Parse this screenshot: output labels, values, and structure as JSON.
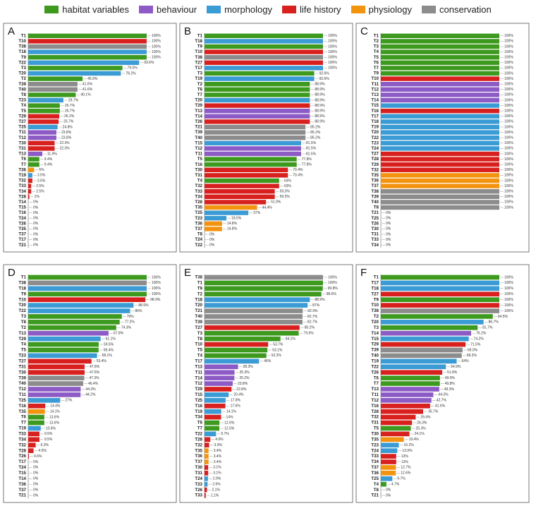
{
  "legend": [
    {
      "name": "habitat variables",
      "color": "#3d9a1f"
    },
    {
      "name": "behaviour",
      "color": "#8d5bc6"
    },
    {
      "name": "morphology",
      "color": "#3a9bd5"
    },
    {
      "name": "life history",
      "color": "#d8201e"
    },
    {
      "name": "physiology",
      "color": "#f39410"
    },
    {
      "name": "conservation",
      "color": "#8c8c8c"
    }
  ],
  "chart_data": [
    {
      "type": "bar",
      "panel_label": "A",
      "xlim": [
        0,
        100
      ],
      "categories": [
        "T1",
        "T10",
        "T38",
        "T18",
        "T9",
        "T22",
        "T3",
        "T20",
        "T2",
        "T39",
        "T40",
        "T8",
        "T23",
        "T4",
        "T5",
        "T29",
        "T27",
        "T25",
        "T11",
        "T12",
        "T30",
        "T31",
        "T13",
        "T6",
        "T7",
        "T36",
        "T19",
        "T32",
        "T33",
        "T34",
        "T28",
        "T14",
        "T15",
        "T16",
        "T24",
        "T26",
        "T35",
        "T37",
        "T17",
        "T21"
      ],
      "values": [
        100,
        100,
        100,
        100,
        100,
        93.6,
        79.5,
        78.2,
        45.9,
        41.6,
        41.6,
        40.1,
        29.7,
        26.7,
        26.7,
        26.2,
        25.7,
        24.8,
        23.8,
        23.8,
        22.3,
        22.3,
        11.9,
        9.4,
        9.4,
        5,
        3.5,
        3.5,
        2.5,
        2.5,
        1,
        0,
        0,
        0,
        0,
        0,
        0,
        0,
        0,
        0
      ],
      "value_labels": [
        "100%",
        "100%",
        "100%",
        "100%",
        "100%",
        "93.6%",
        "79.5%",
        "78.2%",
        "45.9%",
        "41.6%",
        "41.6%",
        "40.1%",
        "29.7%",
        "26.7%",
        "26.7%",
        "26.2%",
        "25.7%",
        "24.8%",
        "23.8%",
        "23.8%",
        "22.3%",
        "22.3%",
        "11.9%",
        "9.4%",
        "9.4%",
        "5%",
        "3.5%",
        "3.5%",
        "2.5%",
        "2.5%",
        "1%",
        "0%",
        "0%",
        "0%",
        "0%",
        "0%",
        "0%",
        "0%",
        "0%",
        "0%"
      ],
      "colors": [
        "#3d9a1f",
        "#d8201e",
        "#8c8c8c",
        "#3a9bd5",
        "#3d9a1f",
        "#3a9bd5",
        "#3d9a1f",
        "#3a9bd5",
        "#3d9a1f",
        "#8c8c8c",
        "#8c8c8c",
        "#3d9a1f",
        "#3a9bd5",
        "#3d9a1f",
        "#3d9a1f",
        "#d8201e",
        "#d8201e",
        "#3a9bd5",
        "#8d5bc6",
        "#8d5bc6",
        "#d8201e",
        "#d8201e",
        "#8d5bc6",
        "#3d9a1f",
        "#3d9a1f",
        "#f39410",
        "#3a9bd5",
        "#d8201e",
        "#d8201e",
        "#d8201e",
        "#d8201e",
        "#8d5bc6",
        "#3a9bd5",
        "#d8201e",
        "#3a9bd5",
        "#d8201e",
        "#f39410",
        "#f39410",
        "#3a9bd5",
        "#8c8c8c"
      ]
    },
    {
      "type": "bar",
      "panel_label": "B",
      "xlim": [
        0,
        100
      ],
      "categories": [
        "T1",
        "T18",
        "T9",
        "T10",
        "T38",
        "T27",
        "T17",
        "T3",
        "T19",
        "T2",
        "T6",
        "T7",
        "T20",
        "T29",
        "T13",
        "T14",
        "T26",
        "T21",
        "T39",
        "T40",
        "T15",
        "T12",
        "T11",
        "T5",
        "T16",
        "T30",
        "T31",
        "T4",
        "T32",
        "T33",
        "T34",
        "T28",
        "T35",
        "T25",
        "T23",
        "T36",
        "T37",
        "T8",
        "T24",
        "T22"
      ],
      "values": [
        100,
        100,
        100,
        100,
        100,
        100,
        100,
        92.6,
        92.6,
        88.9,
        88.9,
        88.9,
        88.9,
        88.9,
        88.9,
        88.9,
        88.9,
        85.2,
        85.2,
        85.2,
        81.5,
        81.5,
        81.5,
        77.8,
        77.8,
        70.4,
        70.4,
        63,
        63,
        59.3,
        59.3,
        51.9,
        44.4,
        37,
        18.5,
        14.8,
        14.8,
        0,
        0,
        0
      ],
      "value_labels": [
        "100%",
        "100%",
        "100%",
        "100%",
        "100%",
        "100%",
        "100%",
        "92.6%",
        "92.6%",
        "88.9%",
        "88.9%",
        "88.9%",
        "88.9%",
        "88.9%",
        "88.9%",
        "88.9%",
        "88.9%",
        "85.2%",
        "85.2%",
        "85.2%",
        "81.5%",
        "81.5%",
        "81.5%",
        "77.8%",
        "77.8%",
        "70.4%",
        "70.4%",
        "63%",
        "63%",
        "59.3%",
        "59.3%",
        "51.9%",
        "44.4%",
        "37%",
        "18.5%",
        "14.8%",
        "14.8%",
        "0%",
        "0%",
        "0%"
      ],
      "colors": [
        "#3d9a1f",
        "#3a9bd5",
        "#3d9a1f",
        "#d8201e",
        "#8c8c8c",
        "#d8201e",
        "#3a9bd5",
        "#3d9a1f",
        "#3a9bd5",
        "#3d9a1f",
        "#3d9a1f",
        "#3d9a1f",
        "#3a9bd5",
        "#d8201e",
        "#8d5bc6",
        "#8d5bc6",
        "#d8201e",
        "#8c8c8c",
        "#8c8c8c",
        "#8c8c8c",
        "#3a9bd5",
        "#8d5bc6",
        "#8d5bc6",
        "#3d9a1f",
        "#3d9a1f",
        "#d8201e",
        "#d8201e",
        "#3d9a1f",
        "#d8201e",
        "#d8201e",
        "#d8201e",
        "#d8201e",
        "#f39410",
        "#3a9bd5",
        "#3a9bd5",
        "#f39410",
        "#f39410",
        "#3d9a1f",
        "#3a9bd5",
        "#3a9bd5"
      ]
    },
    {
      "type": "bar",
      "panel_label": "C",
      "xlim": [
        0,
        100
      ],
      "categories": [
        "T1",
        "T2",
        "T3",
        "T4",
        "T5",
        "T6",
        "T7",
        "T9",
        "T10",
        "T11",
        "T12",
        "T13",
        "T14",
        "T15",
        "T16",
        "T17",
        "T18",
        "T19",
        "T20",
        "T22",
        "T23",
        "T24",
        "T27",
        "T28",
        "T29",
        "T32",
        "T35",
        "T36",
        "T37",
        "T38",
        "T39",
        "T40",
        "T8",
        "T21",
        "T25",
        "T26",
        "T30",
        "T31",
        "T33",
        "T34"
      ],
      "values": [
        100,
        100,
        100,
        100,
        100,
        100,
        100,
        100,
        100,
        100,
        100,
        100,
        100,
        100,
        100,
        100,
        100,
        100,
        100,
        100,
        100,
        100,
        100,
        100,
        100,
        100,
        100,
        100,
        100,
        100,
        100,
        100,
        100,
        0,
        0,
        0,
        0,
        0,
        0,
        0
      ],
      "value_labels": [
        "100%",
        "100%",
        "100%",
        "100%",
        "100%",
        "100%",
        "100%",
        "100%",
        "100%",
        "100%",
        "100%",
        "100%",
        "100%",
        "100%",
        "100%",
        "100%",
        "100%",
        "100%",
        "100%",
        "100%",
        "100%",
        "100%",
        "100%",
        "100%",
        "100%",
        "100%",
        "100%",
        "100%",
        "100%",
        "100%",
        "100%",
        "100%",
        "100%",
        "0%",
        "0%",
        "0%",
        "0%",
        "0%",
        "0%",
        "0%"
      ],
      "colors": [
        "#3d9a1f",
        "#3d9a1f",
        "#3d9a1f",
        "#3d9a1f",
        "#3d9a1f",
        "#3d9a1f",
        "#3d9a1f",
        "#3d9a1f",
        "#d8201e",
        "#8d5bc6",
        "#8d5bc6",
        "#8d5bc6",
        "#8d5bc6",
        "#3a9bd5",
        "#d8201e",
        "#3a9bd5",
        "#3a9bd5",
        "#3a9bd5",
        "#3a9bd5",
        "#3a9bd5",
        "#3a9bd5",
        "#3a9bd5",
        "#d8201e",
        "#d8201e",
        "#d8201e",
        "#d8201e",
        "#f39410",
        "#f39410",
        "#f39410",
        "#8c8c8c",
        "#8c8c8c",
        "#8c8c8c",
        "#8c8c8c",
        "#8c8c8c",
        "#3a9bd5",
        "#d8201e",
        "#d8201e",
        "#d8201e",
        "#d8201e",
        "#d8201e"
      ]
    },
    {
      "type": "bar",
      "panel_label": "D",
      "xlim": [
        0,
        100
      ],
      "categories": [
        "T1",
        "T38",
        "T18",
        "T9",
        "T10",
        "T20",
        "T22",
        "T3",
        "T8",
        "T2",
        "T13",
        "T29",
        "T4",
        "T5",
        "T23",
        "T27",
        "T31",
        "T30",
        "T39",
        "T40",
        "T12",
        "T11",
        "T25",
        "T16",
        "T35",
        "T6",
        "T7",
        "T19",
        "T33",
        "T34",
        "T32",
        "T28",
        "T26",
        "T17",
        "T24",
        "T15",
        "T14",
        "T36",
        "T37",
        "T21"
      ],
      "values": [
        100,
        100,
        100,
        100,
        98.9,
        88.9,
        86,
        79,
        77.2,
        74.3,
        67.8,
        61.1,
        59.5,
        59.4,
        58.1,
        53.4,
        47.6,
        47.6,
        47.3,
        46.4,
        44.3,
        44.2,
        27,
        14.4,
        14.1,
        13.6,
        13.6,
        10.6,
        9.5,
        9.5,
        6.3,
        4.5,
        0.6,
        0,
        0,
        0,
        0,
        0,
        0,
        0
      ],
      "value_labels": [
        "100%",
        "100%",
        "100%",
        "100%",
        "98.9%",
        "88.9%",
        "86%",
        "79%",
        "77.2%",
        "74.3%",
        "67.8%",
        "61.1%",
        "59.5%",
        "59.4%",
        "58.1%",
        "53.4%",
        "47.6%",
        "47.6%",
        "47.3%",
        "46.4%",
        "44.3%",
        "44.2%",
        "27%",
        "14.4%",
        "14.1%",
        "13.6%",
        "13.6%",
        "10.6%",
        "9.5%",
        "9.5%",
        "6.3%",
        "4.5%",
        "0.6%",
        "0%",
        "0%",
        "0%",
        "0%",
        "0%",
        "0%",
        "0%"
      ],
      "colors": [
        "#3d9a1f",
        "#8c8c8c",
        "#3a9bd5",
        "#3d9a1f",
        "#d8201e",
        "#3a9bd5",
        "#3a9bd5",
        "#3d9a1f",
        "#3d9a1f",
        "#3d9a1f",
        "#8d5bc6",
        "#3a9bd5",
        "#3d9a1f",
        "#3d9a1f",
        "#3a9bd5",
        "#d8201e",
        "#d8201e",
        "#d8201e",
        "#8c8c8c",
        "#8c8c8c",
        "#8d5bc6",
        "#8d5bc6",
        "#3a9bd5",
        "#d8201e",
        "#f39410",
        "#3d9a1f",
        "#3d9a1f",
        "#3a9bd5",
        "#d8201e",
        "#d8201e",
        "#d8201e",
        "#d8201e",
        "#d8201e",
        "#3a9bd5",
        "#3a9bd5",
        "#3a9bd5",
        "#8d5bc6",
        "#f39410",
        "#f39410",
        "#8c8c8c"
      ]
    },
    {
      "type": "bar",
      "panel_label": "E",
      "xlim": [
        0,
        100
      ],
      "categories": [
        "T38",
        "T1",
        "T9",
        "T2",
        "T18",
        "T20",
        "T21",
        "T40",
        "T39",
        "T27",
        "T3",
        "T8",
        "T10",
        "T5",
        "T4",
        "T17",
        "T13",
        "T11",
        "T14",
        "T12",
        "T29",
        "T15",
        "T25",
        "T16",
        "T19",
        "T34",
        "T6",
        "T7",
        "T22",
        "T28",
        "T32",
        "T35",
        "T36",
        "T37",
        "T30",
        "T31",
        "T24",
        "T23",
        "T26",
        "T33"
      ],
      "values": [
        100,
        100,
        99.8,
        98.6,
        88.9,
        87,
        82.9,
        82.7,
        82.7,
        80.2,
        79.5,
        64.1,
        53.7,
        53.1,
        52.2,
        46,
        28.3,
        25.3,
        25.2,
        23.8,
        22.8,
        20.4,
        17.8,
        17.6,
        14.1,
        14,
        12.6,
        12.5,
        9.7,
        4.9,
        3.9,
        3.4,
        3.4,
        3.4,
        3.1,
        3.1,
        2.9,
        2.6,
        2.1,
        1.1
      ],
      "value_labels": [
        "100%",
        "100%",
        "99.8%",
        "98.6%",
        "88.9%",
        "87%",
        "82.9%",
        "82.7%",
        "82.7%",
        "80.2%",
        "79.5%",
        "64.1%",
        "53.7%",
        "53.1%",
        "52.2%",
        "46%",
        "28.3%",
        "25.3%",
        "25.2%",
        "23.8%",
        "22.8%",
        "20.4%",
        "17.8%",
        "17.6%",
        "14.1%",
        "14%",
        "12.6%",
        "12.5%",
        "9.7%",
        "4.9%",
        "3.9%",
        "3.4%",
        "3.4%",
        "3.4%",
        "3.1%",
        "3.1%",
        "2.9%",
        "2.6%",
        "2.1%",
        "1.1%"
      ],
      "colors": [
        "#8c8c8c",
        "#3d9a1f",
        "#3d9a1f",
        "#3d9a1f",
        "#3a9bd5",
        "#3a9bd5",
        "#8c8c8c",
        "#8c8c8c",
        "#8c8c8c",
        "#d8201e",
        "#3d9a1f",
        "#3d9a1f",
        "#d8201e",
        "#3d9a1f",
        "#3d9a1f",
        "#3a9bd5",
        "#8d5bc6",
        "#8d5bc6",
        "#8d5bc6",
        "#8d5bc6",
        "#d8201e",
        "#3a9bd5",
        "#3a9bd5",
        "#d8201e",
        "#3a9bd5",
        "#d8201e",
        "#3d9a1f",
        "#3d9a1f",
        "#3a9bd5",
        "#d8201e",
        "#d8201e",
        "#f39410",
        "#f39410",
        "#f39410",
        "#d8201e",
        "#d8201e",
        "#3a9bd5",
        "#3a9bd5",
        "#d8201e",
        "#d8201e"
      ]
    },
    {
      "type": "bar",
      "panel_label": "F",
      "xlim": [
        0,
        100
      ],
      "categories": [
        "T1",
        "T17",
        "T18",
        "T27",
        "T9",
        "T10",
        "T38",
        "T2",
        "T20",
        "T3",
        "T14",
        "T15",
        "T29",
        "T39",
        "T40",
        "T19",
        "T22",
        "T26",
        "T6",
        "T7",
        "T13",
        "T11",
        "T12",
        "T16",
        "T28",
        "T32",
        "T31",
        "T5",
        "T30",
        "T35",
        "T23",
        "T24",
        "T33",
        "T34",
        "T37",
        "T36",
        "T25",
        "T4",
        "T8",
        "T21"
      ],
      "values": [
        100,
        100,
        100,
        100,
        100,
        100,
        100,
        94.5,
        86.7,
        81.7,
        76.2,
        74.2,
        71.5,
        69,
        68.3,
        64,
        54.9,
        51.8,
        49.9,
        49.8,
        49.3,
        44.3,
        42.7,
        41.6,
        35.7,
        29.4,
        26.3,
        25.3,
        24.1,
        19.4,
        15.2,
        13.9,
        13,
        13,
        12.7,
        12.6,
        9.7,
        4.7,
        0,
        0
      ],
      "value_labels": [
        "100%",
        "100%",
        "100%",
        "100%",
        "100%",
        "100%",
        "100%",
        "94.5%",
        "86.7%",
        "81.7%",
        "76.2%",
        "74.2%",
        "71.5%",
        "69.0%",
        "68.3%",
        "64%",
        "54.9%",
        "51.8%",
        "49.9%",
        "49.8%",
        "49.3%",
        "44.3%",
        "42.7%",
        "41.6%",
        "35.7%",
        "29.4%",
        "26.3%",
        "25.3%",
        "24.1%",
        "19.4%",
        "15.2%",
        "13.9%",
        "13%",
        "13%",
        "12.7%",
        "12.6%",
        "9.7%",
        "4.7%",
        "0%",
        "0%"
      ],
      "colors": [
        "#3d9a1f",
        "#3a9bd5",
        "#3a9bd5",
        "#d8201e",
        "#3d9a1f",
        "#d8201e",
        "#8c8c8c",
        "#3d9a1f",
        "#3a9bd5",
        "#3d9a1f",
        "#8d5bc6",
        "#3a9bd5",
        "#d8201e",
        "#8c8c8c",
        "#8c8c8c",
        "#3a9bd5",
        "#3a9bd5",
        "#d8201e",
        "#3d9a1f",
        "#3d9a1f",
        "#8d5bc6",
        "#8d5bc6",
        "#8d5bc6",
        "#d8201e",
        "#d8201e",
        "#d8201e",
        "#d8201e",
        "#3d9a1f",
        "#d8201e",
        "#f39410",
        "#3a9bd5",
        "#3a9bd5",
        "#d8201e",
        "#d8201e",
        "#f39410",
        "#f39410",
        "#3a9bd5",
        "#3d9a1f",
        "#3d9a1f",
        "#8c8c8c"
      ]
    }
  ]
}
